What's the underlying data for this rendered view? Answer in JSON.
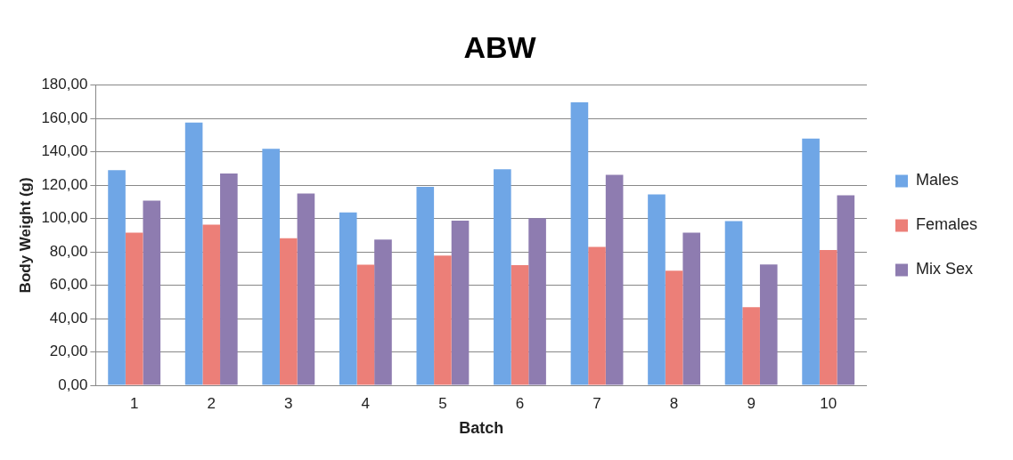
{
  "chart_data": {
    "type": "bar",
    "title": "ABW",
    "xlabel": "Batch",
    "ylabel": "Body Weight (g)",
    "categories": [
      "1",
      "2",
      "3",
      "4",
      "5",
      "6",
      "7",
      "8",
      "9",
      "10"
    ],
    "series": [
      {
        "name": "Males",
        "color": "#6fa6e6",
        "values": [
          129,
          157.6,
          141.8,
          103.7,
          119,
          129.6,
          169.8,
          114.5,
          98.5,
          148
        ]
      },
      {
        "name": "Females",
        "color": "#ec7f78",
        "values": [
          91.5,
          96.3,
          88.2,
          72.3,
          77.8,
          72,
          83,
          68.7,
          46.8,
          81.2
        ]
      },
      {
        "name": "Mix Sex",
        "color": "#8e7cb0",
        "values": [
          110.8,
          127,
          115.1,
          87.4,
          98.8,
          100.2,
          126.3,
          91.5,
          72.5,
          114
        ]
      }
    ],
    "ylim": [
      0,
      180
    ],
    "yticks": [
      {
        "value": 0,
        "label": "0,00"
      },
      {
        "value": 20,
        "label": "20,00"
      },
      {
        "value": 40,
        "label": "40,00"
      },
      {
        "value": 60,
        "label": "60,00"
      },
      {
        "value": 80,
        "label": "80,00"
      },
      {
        "value": 100,
        "label": "100,00"
      },
      {
        "value": 120,
        "label": "120,00"
      },
      {
        "value": 140,
        "label": "140,00"
      },
      {
        "value": 160,
        "label": "160,00"
      },
      {
        "value": 180,
        "label": "180,00"
      }
    ],
    "grid": "y",
    "legend": "right"
  }
}
